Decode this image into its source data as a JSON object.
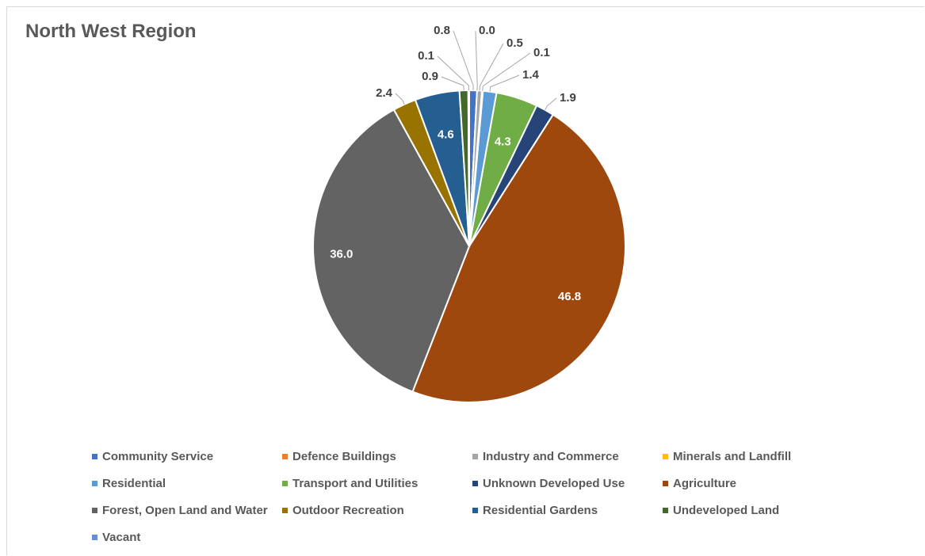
{
  "chart_data": {
    "type": "pie",
    "title": "North West Region",
    "legend_position": "bottom",
    "slices": [
      {
        "name": "Community Service",
        "value": 0.8,
        "color": "#4472c4"
      },
      {
        "name": "Defence Buildings",
        "value": 0.0,
        "color": "#ed7d31"
      },
      {
        "name": "Industry and Commerce",
        "value": 0.5,
        "color": "#a5a5a5"
      },
      {
        "name": "Minerals and Landfill",
        "value": 0.1,
        "color": "#ffc000"
      },
      {
        "name": "Residential",
        "value": 1.4,
        "color": "#5b9bd5"
      },
      {
        "name": "Transport and Utilities",
        "value": 4.3,
        "color": "#70ad47"
      },
      {
        "name": "Unknown Developed Use",
        "value": 1.9,
        "color": "#264478"
      },
      {
        "name": "Agriculture",
        "value": 46.8,
        "color": "#9e480e"
      },
      {
        "name": "Forest, Open Land and Water",
        "value": 36.0,
        "color": "#636363"
      },
      {
        "name": "Outdoor Recreation",
        "value": 2.4,
        "color": "#997300"
      },
      {
        "name": "Residential Gardens",
        "value": 4.6,
        "color": "#255e91"
      },
      {
        "name": "Undeveloped Land",
        "value": 0.9,
        "color": "#43682b"
      },
      {
        "name": "Vacant",
        "value": 0.1,
        "color": "#698ed0"
      }
    ]
  }
}
